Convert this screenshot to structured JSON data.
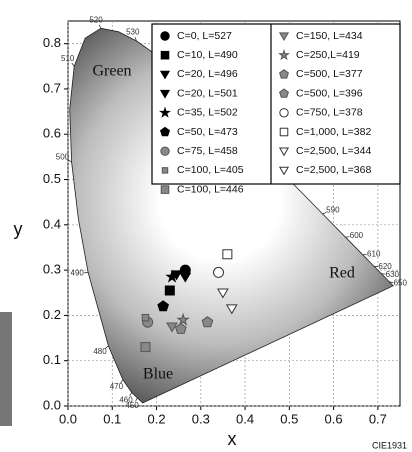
{
  "chart_data": {
    "type": "scatter",
    "x_label": "x",
    "y_label": "y",
    "xlim": [
      0,
      0.75
    ],
    "ylim": [
      0,
      0.85
    ],
    "xticks": [
      {
        "value": 0,
        "label": "0.0"
      },
      0.1,
      0.2,
      0.3,
      0.4,
      0.5,
      0.6,
      0.7
    ],
    "yticks": [
      {
        "value": 0,
        "label": "0.0"
      },
      0.1,
      0.2,
      0.3,
      0.4,
      0.5,
      0.6,
      0.7,
      0.8
    ],
    "grid": true,
    "annotations": {
      "green": "Green",
      "red": "Red",
      "blue": "Blue",
      "source": "CIE1931"
    },
    "spectral_locus": {
      "labels": [
        null,
        "450",
        "460",
        "470",
        "480",
        "490",
        null,
        "500",
        null,
        "510",
        null,
        "520",
        null,
        "530",
        null,
        null,
        null,
        null,
        null,
        "590",
        "600",
        "610",
        "620",
        "630",
        "650",
        null
      ],
      "x": [
        0.1689,
        0.1566,
        0.144,
        0.1241,
        0.0913,
        0.0454,
        0.0235,
        0.0082,
        0.0039,
        0.0139,
        0.0389,
        0.0743,
        0.1142,
        0.1547,
        0.2296,
        0.3016,
        0.3731,
        0.4441,
        0.5125,
        0.5752,
        0.627,
        0.6658,
        0.6915,
        0.7079,
        0.726,
        0.7347
      ],
      "y": [
        0.0069,
        0.0177,
        0.0297,
        0.0578,
        0.1327,
        0.295,
        0.4127,
        0.5384,
        0.6548,
        0.7502,
        0.812,
        0.8338,
        0.8262,
        0.8059,
        0.7543,
        0.6923,
        0.6245,
        0.5547,
        0.4866,
        0.4242,
        0.3725,
        0.334,
        0.3083,
        0.292,
        0.274,
        0.2653
      ]
    },
    "series": [
      {
        "name": "C=0, L=527",
        "marker": "circle",
        "color": "#000000",
        "fill": "#000000",
        "x": [
          0.265
        ],
        "y": [
          0.3
        ]
      },
      {
        "name": "C=10, L=490",
        "marker": "square",
        "color": "#000000",
        "fill": "#000000",
        "x": [
          0.23
        ],
        "y": [
          0.255
        ]
      },
      {
        "name": "C=20, L=496",
        "marker": "triangle-down",
        "color": "#000000",
        "fill": "#000000",
        "x": [
          0.245
        ],
        "y": [
          0.29
        ]
      },
      {
        "name": "C=20, L=501",
        "marker": "triangle-down",
        "color": "#000000",
        "fill": "#000000",
        "x": [
          0.265
        ],
        "y": [
          0.285
        ]
      },
      {
        "name": "C=35, L=502",
        "marker": "star",
        "color": "#000000",
        "fill": "#000000",
        "x": [
          0.235
        ],
        "y": [
          0.285
        ]
      },
      {
        "name": "C=50, L=473",
        "marker": "pentagon",
        "color": "#000000",
        "fill": "#000000",
        "x": [
          0.215
        ],
        "y": [
          0.22
        ]
      },
      {
        "name": "C=75, L=458",
        "marker": "circle",
        "color": "#555555",
        "fill": "#888888",
        "x": [
          0.18
        ],
        "y": [
          0.185
        ]
      },
      {
        "name": "C=100, L=405",
        "marker": "square-small",
        "color": "#555555",
        "fill": "#888888",
        "x": [
          0.175
        ],
        "y": [
          0.195
        ]
      },
      {
        "name": "C=100, L=446",
        "marker": "square",
        "color": "#555555",
        "fill": "#888888",
        "x": [
          0.175
        ],
        "y": [
          0.13
        ]
      },
      {
        "name": "C=150, L=434",
        "marker": "triangle-down",
        "color": "#555555",
        "fill": "#888888",
        "x": [
          0.235
        ],
        "y": [
          0.175
        ]
      },
      {
        "name": "C=250,L=419",
        "marker": "star",
        "color": "#555555",
        "fill": "#888888",
        "x": [
          0.26
        ],
        "y": [
          0.19
        ]
      },
      {
        "name": "C=500, L=377",
        "marker": "pentagon",
        "color": "#555555",
        "fill": "#888888",
        "x": [
          0.315
        ],
        "y": [
          0.185
        ]
      },
      {
        "name": "C=500, L=396",
        "marker": "pentagon",
        "color": "#555555",
        "fill": "#888888",
        "x": [
          0.255
        ],
        "y": [
          0.17
        ]
      },
      {
        "name": "C=750, L=378",
        "marker": "circle",
        "color": "#333333",
        "fill": "#ffffff",
        "x": [
          0.34
        ],
        "y": [
          0.295
        ]
      },
      {
        "name": "C=1,000, L=382",
        "marker": "square",
        "color": "#333333",
        "fill": "#ffffff",
        "x": [
          0.36
        ],
        "y": [
          0.335
        ]
      },
      {
        "name": "C=2,500, L=344",
        "marker": "triangle-down",
        "color": "#333333",
        "fill": "#ffffff",
        "x": [
          0.35
        ],
        "y": [
          0.25
        ]
      },
      {
        "name": "C=2,500, L=368",
        "marker": "triangle-down",
        "color": "#333333",
        "fill": "#ffffff",
        "x": [
          0.37
        ],
        "y": [
          0.215
        ]
      }
    ]
  }
}
